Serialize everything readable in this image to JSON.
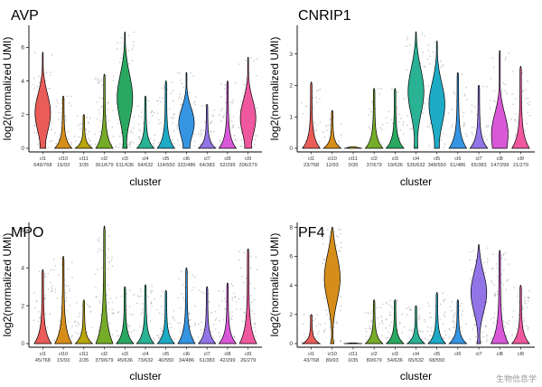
{
  "chart_data": [
    {
      "type": "violin",
      "title": "AVP",
      "ylabel": "log2(normalized UMI)",
      "xlabel": "cluster",
      "ylim": [
        0,
        7.2
      ],
      "yticks": [
        0,
        2,
        4,
        6
      ],
      "categories": [
        "cl1",
        "cl10",
        "cl11",
        "cl2",
        "cl3",
        "cl4",
        "cl5",
        "cl6",
        "cl7",
        "cl8",
        "cl9"
      ],
      "counts": [
        "649/768",
        "16/93",
        "3/35",
        "361/679",
        "611/636",
        "64/632",
        "114/550",
        "322/486",
        "64/383",
        "52/299",
        "206/279"
      ],
      "ymax": [
        5.7,
        3.1,
        2.0,
        4.4,
        6.9,
        3.1,
        4.0,
        4.5,
        2.6,
        4.0,
        5.4
      ],
      "median": [
        2.1,
        0,
        0,
        0,
        3.0,
        0,
        0,
        1.5,
        0,
        0,
        1.8
      ],
      "colors": [
        "#e8534f",
        "#d4880f",
        "#b5a000",
        "#6fa81c",
        "#1fa35a",
        "#1fae8f",
        "#12a7c3",
        "#2b8fe0",
        "#8d6de6",
        "#d64fd6",
        "#ee4f9a"
      ]
    },
    {
      "type": "violin",
      "title": "CNRIP1",
      "ylabel": "log2(normalized UMI)",
      "xlabel": "cluster",
      "ylim": [
        0,
        3.85
      ],
      "yticks": [
        0,
        1,
        2,
        3
      ],
      "categories": [
        "cl1",
        "cl10",
        "cl11",
        "cl2",
        "cl3",
        "cl4",
        "cl5",
        "cl6",
        "cl7",
        "cl8",
        "cl9"
      ],
      "counts": [
        "23/768",
        "12/93",
        "0/35",
        "37/679",
        "19/636",
        "535/632",
        "348/550",
        "61/486",
        "65/383",
        "147/299",
        "21/279"
      ],
      "ymax": [
        2.1,
        1.2,
        0.05,
        1.9,
        1.9,
        3.7,
        3.4,
        2.4,
        2.0,
        3.1,
        2.6
      ],
      "median": [
        0,
        0,
        0,
        0,
        0,
        1.8,
        1.4,
        0,
        0,
        0.5,
        0
      ],
      "colors": [
        "#e8534f",
        "#d4880f",
        "#b5a000",
        "#6fa81c",
        "#1fa35a",
        "#1fae8f",
        "#12a7c3",
        "#2b8fe0",
        "#8d6de6",
        "#d64fd6",
        "#ee4f9a"
      ]
    },
    {
      "type": "violin",
      "title": "MPO",
      "ylabel": "log2(normalized UMI)",
      "xlabel": "cluster",
      "ylim": [
        0,
        6.3
      ],
      "yticks": [
        0,
        2,
        4,
        6
      ],
      "categories": [
        "cl1",
        "cl10",
        "cl11",
        "cl2",
        "cl3",
        "cl4",
        "cl5",
        "cl6",
        "cl7",
        "cl8",
        "cl9"
      ],
      "counts": [
        "45/768",
        "15/93",
        "2/35",
        "379/679",
        "45/636",
        "73/632",
        "40/550",
        "34/486",
        "61/383",
        "42/299",
        "26/279"
      ],
      "ymax": [
        3.9,
        4.6,
        2.3,
        6.2,
        3.0,
        3.1,
        2.8,
        4.0,
        3.0,
        3.2,
        5.0
      ],
      "median": [
        0,
        0,
        0,
        0,
        0,
        0,
        0,
        0,
        0,
        0,
        0
      ],
      "colors": [
        "#e8534f",
        "#d4880f",
        "#b5a000",
        "#6fa81c",
        "#1fa35a",
        "#1fae8f",
        "#12a7c3",
        "#2b8fe0",
        "#8d6de6",
        "#d64fd6",
        "#ee4f9a"
      ]
    },
    {
      "type": "violin",
      "title": "PF4",
      "ylabel": "log2(normalized UMI)",
      "xlabel": "cluster",
      "ylim": [
        0,
        8.2
      ],
      "yticks": [
        0,
        2,
        4,
        6,
        8
      ],
      "categories": [
        "cl1",
        "cl10",
        "cl11",
        "cl2",
        "cl3",
        "cl4",
        "cl5",
        "cl6",
        "cl7",
        "cl8",
        "cl9"
      ],
      "counts": [
        "43/768",
        "89/93",
        "0/35",
        "80/679",
        "54/636",
        "65/632",
        "68/550",
        "",
        "",
        "",
        ""
      ],
      "ymax": [
        2.0,
        8.0,
        0.05,
        3.0,
        3.0,
        2.6,
        3.5,
        3.0,
        6.8,
        6.4,
        4.0
      ],
      "median": [
        0,
        4.5,
        0,
        0,
        0,
        0,
        0,
        0,
        3.5,
        0,
        0
      ],
      "colors": [
        "#e8534f",
        "#d4880f",
        "#b5a000",
        "#6fa81c",
        "#1fa35a",
        "#1fae8f",
        "#12a7c3",
        "#2b8fe0",
        "#8d6de6",
        "#d64fd6",
        "#ee4f9a"
      ]
    }
  ],
  "watermark": "生物信息学"
}
